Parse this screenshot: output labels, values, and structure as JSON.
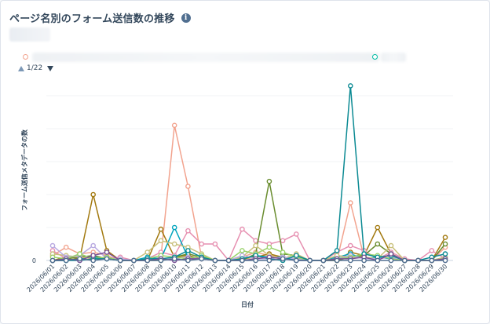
{
  "header": {
    "title": "ページ名別のフォーム送信数の推移",
    "info_icon": "info-icon",
    "info_glyph": "i"
  },
  "legend": {
    "first_color": "#f2a38e",
    "last_color": "#00bda5"
  },
  "pager": {
    "label": "1/22"
  },
  "chart_data": {
    "type": "line",
    "xlabel": "日付",
    "ylabel": "フォーム送信メタデータの数",
    "y_tick_labels": [
      "0"
    ],
    "ylim": [
      0,
      11
    ],
    "grid": "horizontal",
    "categories": [
      "2026/06/01",
      "2026/06/02",
      "2026/06/03",
      "2026/06/04",
      "2026/06/05",
      "2026/06/06",
      "2026/06/07",
      "2026/06/08",
      "2026/06/09",
      "2026/06/10",
      "2026/06/11",
      "2026/06/12",
      "2026/06/13",
      "2026/06/14",
      "2026/06/15",
      "2026/06/16",
      "2026/06/17",
      "2026/06/18",
      "2026/06/19",
      "2026/06/20",
      "2026/06/21",
      "2026/06/22",
      "2026/06/23",
      "2026/06/24",
      "2026/06/25",
      "2026/06/26",
      "2026/06/27",
      "2026/06/28",
      "2026/06/29",
      "2026/06/30"
    ],
    "series": [
      {
        "color": "#f2a38e",
        "values": [
          0.3,
          0.8,
          0.4,
          0.5,
          0.3,
          0,
          0,
          0,
          0.2,
          8.2,
          4.5,
          0.2,
          0,
          0,
          0.2,
          0.5,
          0.3,
          0.2,
          0.1,
          0,
          0,
          0,
          3.5,
          0.2,
          0.1,
          0.2,
          0,
          0,
          0,
          0.8
        ]
      },
      {
        "color": "#a2790f",
        "values": [
          0,
          0.2,
          0.1,
          4.0,
          0.6,
          0,
          0,
          0,
          1.9,
          0.2,
          0.3,
          0.1,
          0,
          0,
          0.1,
          0.2,
          0.4,
          0.2,
          0.1,
          0,
          0,
          0,
          0.5,
          0.3,
          2.0,
          0.4,
          0,
          0,
          0,
          1.4
        ]
      },
      {
        "color": "#e68fb0",
        "values": [
          0.6,
          0.1,
          0.3,
          0.2,
          0.1,
          0.2,
          0,
          0.1,
          0.5,
          0.3,
          1.8,
          1.0,
          1.0,
          0,
          1.9,
          1.2,
          1.0,
          1.2,
          1.6,
          0,
          0,
          0.5,
          0.9,
          0.6,
          0.1,
          0.5,
          0.1,
          0,
          0.6,
          0.1
        ]
      },
      {
        "color": "#6a8d2f",
        "values": [
          0,
          0.1,
          0.2,
          0.3,
          0.1,
          0,
          0,
          0,
          0,
          0.2,
          0.4,
          0.2,
          0,
          0,
          0,
          0.4,
          4.8,
          0.4,
          0.3,
          0,
          0,
          0,
          0.2,
          0.3,
          1.0,
          0.4,
          0,
          0,
          0,
          1.0
        ]
      },
      {
        "color": "#00a4bd",
        "values": [
          0,
          0,
          0.1,
          0.2,
          0.1,
          0,
          0,
          0.2,
          0.1,
          2.0,
          0.2,
          0.1,
          0,
          0,
          0.1,
          0.3,
          0.2,
          0.2,
          0,
          0,
          0,
          0.2,
          0.4,
          0.1,
          0.2,
          0.1,
          0,
          0,
          0,
          0.2
        ]
      },
      {
        "color": "#c9c07c",
        "values": [
          0.4,
          0.3,
          0.2,
          0.1,
          0.2,
          0,
          0,
          0.5,
          1.2,
          1.0,
          0.8,
          0.4,
          0,
          0,
          0.2,
          0.9,
          0.3,
          0.1,
          0.4,
          0,
          0,
          0.3,
          0.2,
          0.2,
          0.1,
          0.9,
          0,
          0,
          0,
          0.2
        ]
      },
      {
        "color": "#b8a9e0",
        "values": [
          0.9,
          0.2,
          0.3,
          0.9,
          0.1,
          0.1,
          0,
          0,
          0.1,
          0.1,
          0.2,
          0.1,
          0,
          0,
          0.3,
          0.1,
          0.1,
          0.2,
          0.1,
          0,
          0,
          0.1,
          0.3,
          0.1,
          0.1,
          0.2,
          0,
          0,
          0,
          0
        ]
      },
      {
        "color": "#99d26a",
        "values": [
          0.2,
          0.1,
          0.4,
          0.1,
          0.2,
          0,
          0,
          0.1,
          0.3,
          0.2,
          0.1,
          0.3,
          0,
          0,
          0.6,
          0.4,
          0.8,
          0.5,
          0.2,
          0,
          0,
          0.1,
          0.2,
          0.4,
          0.3,
          0.1,
          0,
          0,
          0,
          0.1
        ]
      },
      {
        "color": "#0b8a93",
        "values": [
          0,
          0,
          0,
          0.1,
          0.1,
          0,
          0,
          0.1,
          0.1,
          0.2,
          0.6,
          0.2,
          0,
          0,
          0.1,
          0.3,
          0.1,
          0,
          0.3,
          0,
          0,
          0.6,
          10.6,
          0.4,
          0.2,
          0.3,
          0,
          0,
          0.2,
          0.4
        ]
      },
      {
        "color": "#7a5195",
        "values": [
          0,
          0.1,
          0,
          0.3,
          0.5,
          0,
          0,
          0,
          0.1,
          0,
          0.1,
          0.1,
          0,
          0,
          0,
          0.1,
          0.2,
          0.1,
          0,
          0,
          0,
          0.1,
          0.1,
          0.2,
          0,
          0.4,
          0,
          0,
          0,
          0.1
        ]
      },
      {
        "color": "#516f90",
        "values": [
          0,
          0,
          0.1,
          0,
          0.1,
          0,
          0,
          0,
          0,
          0.1,
          0,
          0.1,
          0,
          0,
          0,
          0,
          0,
          0.1,
          0,
          0,
          0,
          0,
          0,
          0,
          0,
          0,
          0,
          0,
          0,
          0
        ]
      }
    ]
  }
}
